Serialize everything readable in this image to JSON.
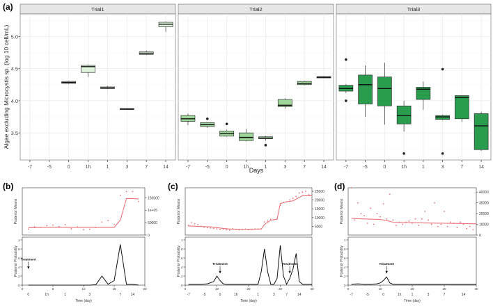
{
  "chart_data": [
    {
      "panel_label": "(a)",
      "type": "boxplot",
      "ylabel": "Algae excluding Microcystis sp. (log 10 cell/mL)",
      "xlabel": "Days",
      "yticks": [
        3.5,
        4.0,
        4.5,
        5.0
      ],
      "ytick_labels": [
        "3.5",
        "4.0",
        "4.5",
        "5.0"
      ],
      "ylim": [
        3.08,
        5.35
      ],
      "categories": [
        "-7",
        "-5",
        "0",
        "1h",
        "1",
        "3",
        "7",
        "14"
      ],
      "facets": [
        {
          "title": "Trial1",
          "fill": "#dff5dc",
          "boxes": [
            {
              "cat": "0",
              "min": 4.26,
              "q1": 4.27,
              "median": 4.285,
              "q3": 4.3,
              "max": 4.31,
              "outliers": []
            },
            {
              "cat": "1h",
              "min": 4.37,
              "q1": 4.44,
              "median": 4.53,
              "q3": 4.55,
              "max": 4.56,
              "outliers": []
            },
            {
              "cat": "1",
              "min": 4.18,
              "q1": 4.19,
              "median": 4.2,
              "q3": 4.215,
              "max": 4.23,
              "outliers": []
            },
            {
              "cat": "3",
              "min": 3.86,
              "q1": 3.865,
              "median": 3.87,
              "q3": 3.88,
              "max": 3.885,
              "outliers": []
            },
            {
              "cat": "7",
              "min": 4.71,
              "q1": 4.72,
              "median": 4.74,
              "q3": 4.76,
              "max": 4.78,
              "outliers": []
            },
            {
              "cat": "14",
              "min": 5.07,
              "q1": 5.15,
              "median": 5.19,
              "q3": 5.22,
              "max": 5.23,
              "outliers": []
            }
          ]
        },
        {
          "title": "Trial2",
          "fill": "#9ed69a",
          "boxes": [
            {
              "cat": "-7",
              "min": 3.62,
              "q1": 3.68,
              "median": 3.72,
              "q3": 3.77,
              "max": 3.8,
              "outliers": []
            },
            {
              "cat": "-5",
              "min": 3.58,
              "q1": 3.6,
              "median": 3.63,
              "q3": 3.66,
              "max": 3.66,
              "outliers": [
                3.72
              ]
            },
            {
              "cat": "0",
              "min": 3.44,
              "q1": 3.45,
              "median": 3.49,
              "q3": 3.53,
              "max": 3.55,
              "outliers": [
                3.64
              ]
            },
            {
              "cat": "1h",
              "min": 3.37,
              "q1": 3.38,
              "median": 3.43,
              "q3": 3.5,
              "max": 3.56,
              "outliers": []
            },
            {
              "cat": "1",
              "min": 3.38,
              "q1": 3.41,
              "median": 3.42,
              "q3": 3.44,
              "max": 3.45,
              "outliers": [
                3.31
              ]
            },
            {
              "cat": "3",
              "min": 3.88,
              "q1": 3.91,
              "median": 3.93,
              "q3": 4.02,
              "max": 4.04,
              "outliers": []
            },
            {
              "cat": "7",
              "min": 4.24,
              "q1": 4.25,
              "median": 4.27,
              "q3": 4.3,
              "max": 4.31,
              "outliers": []
            },
            {
              "cat": "14",
              "min": 4.35,
              "q1": 4.355,
              "median": 4.365,
              "q3": 4.375,
              "max": 4.38,
              "outliers": []
            }
          ]
        },
        {
          "title": "Trial3",
          "fill": "#2a9c4e",
          "boxes": [
            {
              "cat": "-7",
              "min": 4.12,
              "q1": 4.15,
              "median": 4.19,
              "q3": 4.24,
              "max": 4.26,
              "outliers": [
                4.64,
                4.0
              ]
            },
            {
              "cat": "-5",
              "min": 3.75,
              "q1": 3.95,
              "median": 4.25,
              "q3": 4.4,
              "max": 4.55,
              "outliers": []
            },
            {
              "cat": "0",
              "min": 3.63,
              "q1": 3.92,
              "median": 4.19,
              "q3": 4.37,
              "max": 4.59,
              "outliers": []
            },
            {
              "cat": "1h",
              "min": 3.52,
              "q1": 3.64,
              "median": 3.77,
              "q3": 3.92,
              "max": 4.0,
              "outliers": [
                3.18
              ]
            },
            {
              "cat": "1",
              "min": 3.86,
              "q1": 4.02,
              "median": 4.18,
              "q3": 4.21,
              "max": 4.3,
              "outliers": []
            },
            {
              "cat": "3",
              "min": 3.7,
              "q1": 3.71,
              "median": 3.75,
              "q3": 3.77,
              "max": 3.78,
              "outliers": [
                4.49,
                3.18
              ]
            },
            {
              "cat": "7",
              "min": 3.67,
              "q1": 3.72,
              "median": 4.05,
              "q3": 4.08,
              "max": 4.08,
              "outliers": []
            },
            {
              "cat": "14",
              "min": 3.22,
              "q1": 3.24,
              "median": 3.61,
              "q3": 3.8,
              "max": 3.83,
              "outliers": []
            }
          ]
        }
      ]
    },
    {
      "panel_label": "(b)",
      "type": "line",
      "xlabel": "Time (day)",
      "xlim": [
        0,
        20
      ],
      "xticks": [
        0,
        5,
        10,
        15,
        20
      ],
      "xtick_labels": [
        "0",
        "5",
        "10",
        "15",
        "20"
      ],
      "day_labels": [
        {
          "x": 1,
          "label": "0"
        },
        {
          "x": 4,
          "label": "1h"
        },
        {
          "x": 7,
          "label": "1"
        },
        {
          "x": 11,
          "label": "3"
        },
        {
          "x": 16,
          "label": "7"
        },
        {
          "x": 18,
          "label": "14"
        }
      ],
      "top": {
        "ylabel": "Posterior Means",
        "ylim": [
          0,
          190000
        ],
        "yticks": [
          0,
          50000,
          100000,
          150000
        ],
        "ytick_labels": [
          "0",
          "50000",
          "1e+05",
          "150000"
        ],
        "mean_x": [
          1,
          2,
          3,
          4,
          5,
          6,
          7,
          8,
          9,
          10,
          11,
          12,
          13,
          14,
          15,
          16,
          17,
          18,
          19
        ],
        "mean_y": [
          30000,
          30000,
          31000,
          31000,
          31000,
          31000,
          31000,
          31000,
          31000,
          31000,
          31000,
          31000,
          31000,
          31000,
          31000,
          60000,
          147000,
          147000,
          145000
        ],
        "points_x": [
          1,
          2,
          3,
          4,
          5,
          6,
          7,
          8,
          9,
          10,
          11,
          12,
          13,
          14,
          15,
          16,
          17,
          18,
          19
        ],
        "points_y": [
          24000,
          33000,
          31000,
          38000,
          40000,
          34000,
          42000,
          25000,
          33000,
          22000,
          23000,
          30000,
          52000,
          58000,
          42000,
          160000,
          175000,
          175000,
          135000
        ]
      },
      "bottom": {
        "ylabel": "Posterior Probability",
        "ylim": [
          0,
          1
        ],
        "yticks": [
          0,
          0.2,
          0.4,
          0.6,
          0.8,
          1
        ],
        "ytick_labels": [
          "0",
          ".2",
          ".4",
          ".6",
          ".8",
          "1"
        ],
        "x": [
          1,
          2,
          3,
          4,
          5,
          6,
          7,
          8,
          9,
          10,
          11,
          12,
          13,
          14,
          15,
          16,
          17,
          18,
          19
        ],
        "y": [
          0,
          0,
          0,
          0,
          0,
          0,
          0,
          0,
          0,
          0,
          0,
          0.01,
          0.2,
          0.02,
          0.1,
          0.9,
          0.02,
          0.02,
          0
        ],
        "annotations": [
          {
            "text": "Treatment",
            "x": 1,
            "y": 0.55
          }
        ]
      }
    },
    {
      "panel_label": "(c)",
      "type": "line",
      "xlabel": "Time (day)",
      "xlim": [
        0,
        40
      ],
      "xticks": [
        0,
        10,
        20,
        30,
        40
      ],
      "xtick_labels": [
        "0",
        "10",
        "20",
        "30",
        "40"
      ],
      "day_labels": [
        {
          "x": 1,
          "label": "-7"
        },
        {
          "x": 6,
          "label": "-5"
        },
        {
          "x": 11,
          "label": "0"
        },
        {
          "x": 16,
          "label": "1h"
        },
        {
          "x": 23,
          "label": "1"
        },
        {
          "x": 28,
          "label": "3"
        },
        {
          "x": 32,
          "label": "7"
        },
        {
          "x": 36,
          "label": "14"
        }
      ],
      "top": {
        "ylabel": "Posterior Means",
        "ylim": [
          0,
          27000
        ],
        "yticks": [
          5000,
          10000,
          15000,
          20000,
          25000
        ],
        "ytick_labels": [
          "5000",
          "10000",
          "15000",
          "20000",
          "25000"
        ],
        "mean_x": [
          1,
          4,
          8,
          12,
          15,
          18,
          21,
          24,
          25,
          27,
          29,
          30,
          32,
          34,
          35,
          37,
          40
        ],
        "mean_y": [
          5200,
          5000,
          4700,
          3800,
          3300,
          3300,
          3300,
          3500,
          6000,
          8500,
          9000,
          18000,
          19000,
          19500,
          20500,
          22500,
          22500
        ],
        "points_x": [
          1,
          2,
          3,
          4,
          5,
          6,
          7,
          8,
          9,
          10,
          11,
          12,
          13,
          14,
          15,
          16,
          17,
          18,
          19,
          20,
          21,
          22,
          23,
          24,
          25,
          26,
          27,
          28,
          29,
          30,
          31,
          32,
          33,
          34,
          35,
          36,
          37,
          38,
          39
        ],
        "points_y": [
          5500,
          7000,
          6500,
          6000,
          5000,
          4500,
          4200,
          4000,
          3800,
          3500,
          3200,
          3400,
          3000,
          2800,
          3600,
          3300,
          3000,
          3200,
          3400,
          3100,
          3300,
          3500,
          3400,
          3600,
          7500,
          8000,
          9000,
          8800,
          9500,
          17000,
          18500,
          19000,
          20000,
          21000,
          22000,
          24000,
          24500,
          25000,
          23000
        ]
      },
      "bottom": {
        "ylabel": "Posterior Probability",
        "ylim": [
          0,
          1
        ],
        "yticks": [
          0,
          0.2,
          0.4,
          0.6,
          0.8,
          1
        ],
        "ytick_labels": [
          "0",
          ".2",
          ".4",
          ".6",
          ".8",
          "1"
        ],
        "x": [
          1,
          3,
          5,
          7,
          9,
          10,
          11,
          12,
          13,
          15,
          17,
          19,
          21,
          23,
          24,
          25,
          26,
          27,
          28,
          29,
          30,
          31,
          32,
          33,
          34,
          35,
          36,
          37,
          38,
          39,
          40
        ],
        "y": [
          0.02,
          0.02,
          0.02,
          0.03,
          0.08,
          0.2,
          0.1,
          0.03,
          0.02,
          0.02,
          0.02,
          0.02,
          0.02,
          0.02,
          0.3,
          0.8,
          0.3,
          0.02,
          0.02,
          0.15,
          0.88,
          0.2,
          0.02,
          0.15,
          0.35,
          0.7,
          0.08,
          0.02,
          0.02,
          0.02,
          0.02
        ],
        "annotations": [
          {
            "text": "Treatment",
            "x": 11,
            "y": 0.45
          },
          {
            "text": "Treatment",
            "x": 33,
            "y": 0.45
          }
        ]
      }
    },
    {
      "panel_label": "(d)",
      "type": "line",
      "xlabel": "Time (day)",
      "xlim": [
        0,
        40
      ],
      "xticks": [
        0,
        10,
        20,
        30,
        40
      ],
      "xtick_labels": [
        "0",
        "10",
        "20",
        "30",
        "40"
      ],
      "day_labels": [
        {
          "x": 1,
          "label": "-7"
        },
        {
          "x": 6,
          "label": "-5"
        },
        {
          "x": 11,
          "label": "0"
        },
        {
          "x": 16,
          "label": "1h"
        },
        {
          "x": 20,
          "label": "1"
        },
        {
          "x": 25,
          "label": "3"
        },
        {
          "x": 30,
          "label": "7"
        },
        {
          "x": 36,
          "label": "14"
        }
      ],
      "top": {
        "ylabel": "Posterior Means",
        "ylim": [
          0,
          44000
        ],
        "yticks": [
          0,
          10000,
          20000,
          30000,
          40000
        ],
        "ytick_labels": [
          "0",
          "10000",
          "20000",
          "30000",
          "40000"
        ],
        "mean_x": [
          1,
          5,
          10,
          12,
          14,
          20,
          25,
          30,
          35,
          40
        ],
        "mean_y": [
          15500,
          15000,
          14500,
          13500,
          12000,
          11500,
          11200,
          11000,
          10800,
          10500
        ],
        "points_x": [
          1,
          2,
          3,
          4,
          5,
          6,
          7,
          8,
          9,
          10,
          11,
          12,
          13,
          14,
          15,
          16,
          17,
          18,
          19,
          20,
          21,
          22,
          23,
          24,
          25,
          26,
          27,
          28,
          29,
          30,
          31,
          32,
          33,
          34,
          35,
          36,
          37,
          38,
          39
        ],
        "points_y": [
          44000,
          14000,
          30000,
          20000,
          18000,
          11000,
          25000,
          10000,
          20000,
          17000,
          29000,
          15000,
          38000,
          14000,
          9000,
          12000,
          10000,
          12000,
          13000,
          11000,
          15000,
          9000,
          15000,
          22000,
          14000,
          10000,
          30000,
          8000,
          10000,
          22000,
          8000,
          12000,
          11000,
          7000,
          12000,
          10000,
          6000,
          8000,
          5000
        ]
      },
      "bottom": {
        "ylabel": "Posterior Probability",
        "ylim": [
          0,
          1
        ],
        "yticks": [
          0,
          0.2,
          0.4,
          0.6,
          0.8,
          1
        ],
        "ytick_labels": [
          "0",
          ".2",
          ".4",
          ".6",
          ".8",
          "1"
        ],
        "x": [
          1,
          3,
          5,
          7,
          9,
          10,
          11,
          12,
          13,
          14,
          16,
          20,
          25,
          30,
          35,
          40
        ],
        "y": [
          0.02,
          0.03,
          0.02,
          0.02,
          0.03,
          0.05,
          0.1,
          0.18,
          0.05,
          0.02,
          0.02,
          0.02,
          0.02,
          0.02,
          0.02,
          0.02
        ],
        "annotations": [
          {
            "text": "Treatment",
            "x": 12,
            "y": 0.45
          }
        ]
      }
    }
  ]
}
